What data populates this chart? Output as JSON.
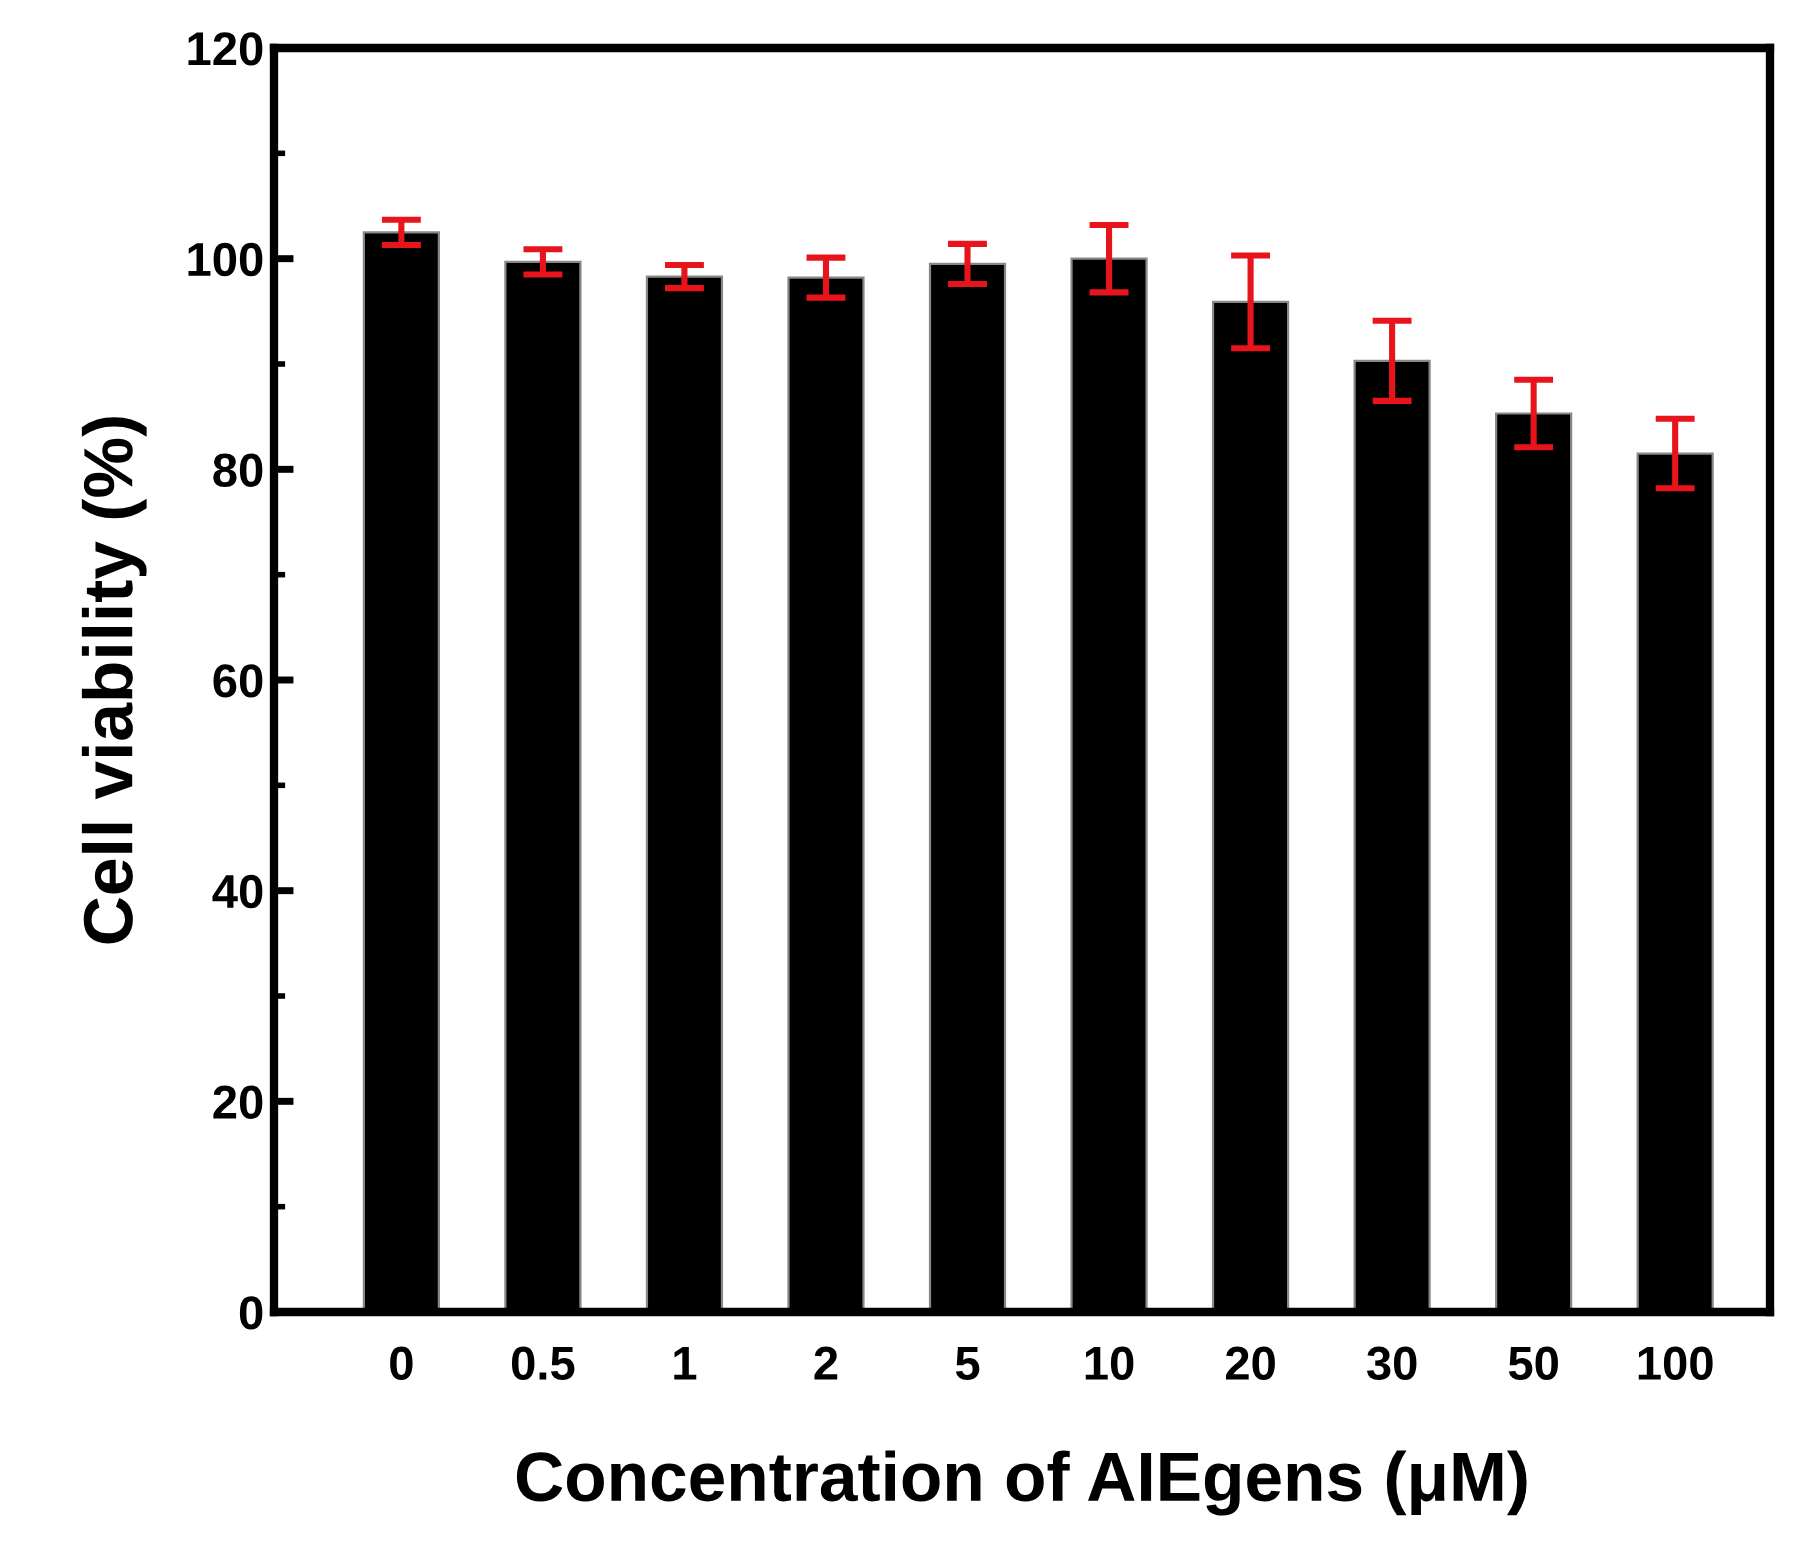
{
  "chart_data": {
    "type": "bar",
    "xlabel": "Concentration of AIEgens (μM)",
    "ylabel": "Cell viability (%)",
    "categories": [
      "0",
      "0.5",
      "1",
      "2",
      "5",
      "10",
      "20",
      "30",
      "50",
      "100"
    ],
    "values": [
      102.5,
      99.7,
      98.3,
      98.2,
      99.5,
      100.0,
      95.9,
      90.3,
      85.3,
      81.5
    ],
    "errors": [
      1.2,
      1.2,
      1.1,
      1.9,
      1.9,
      3.2,
      4.4,
      3.8,
      3.2,
      3.3
    ],
    "color": "#000000",
    "ylim": [
      0,
      120
    ],
    "yticks": [
      0,
      20,
      40,
      60,
      80,
      100,
      120
    ],
    "grid": false,
    "legend": false
  }
}
